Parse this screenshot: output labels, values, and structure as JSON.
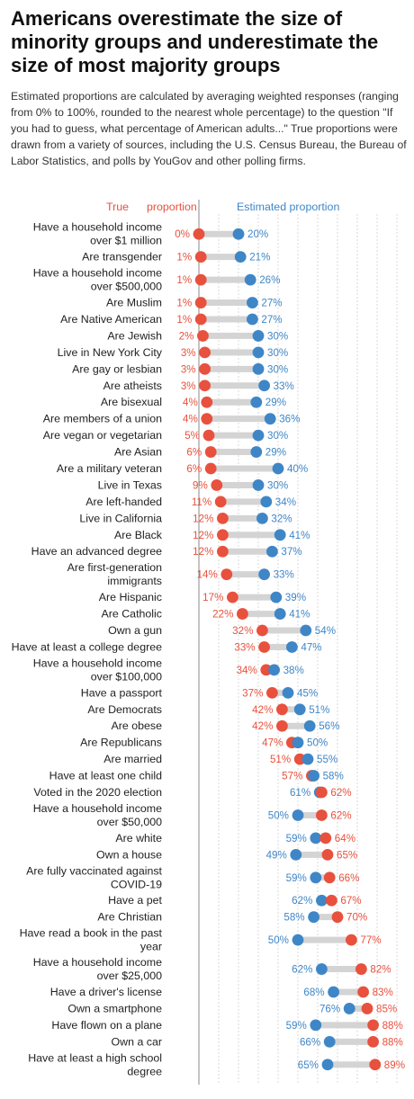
{
  "title": "Americans overestimate the size of minority groups and underestimate the size of most majority groups",
  "subtitle": "Estimated proportions are calculated by averaging weighted responses (ranging from 0% to 100%, rounded to the nearest whole percentage) to the question \"If you had to guess, what percentage of American adults...\" True proportions were drawn from a variety of sources, including the U.S. Census Bureau, the Bureau of Labor Statistics, and polls by YouGov and other polling firms.",
  "colors": {
    "true": "#e8513d",
    "estimated": "#3f86c7",
    "connector": "#d4d4d4",
    "grid": "#d9d9d9"
  },
  "chart_data": {
    "type": "dumbbell",
    "legend": {
      "true_label": "True",
      "true_label2": "proportion",
      "estimated_label": "Estimated proportion"
    },
    "xlim": [
      0,
      100
    ],
    "unit": "%",
    "categories": [
      [
        "Have a household income",
        "over $1 million"
      ],
      [
        "Are transgender"
      ],
      [
        "Have a household income",
        "over $500,000"
      ],
      [
        "Are Muslim"
      ],
      [
        "Are Native American"
      ],
      [
        "Are Jewish"
      ],
      [
        "Live in New York City"
      ],
      [
        "Are gay or lesbian"
      ],
      [
        "Are atheists"
      ],
      [
        "Are bisexual"
      ],
      [
        "Are members of a union"
      ],
      [
        "Are vegan or vegetarian"
      ],
      [
        "Are Asian"
      ],
      [
        "Are a military veteran"
      ],
      [
        "Live in Texas"
      ],
      [
        "Are left-handed"
      ],
      [
        "Live in California"
      ],
      [
        "Are Black"
      ],
      [
        "Have an advanced degree"
      ],
      [
        "Are first-generation",
        "immigrants"
      ],
      [
        "Are Hispanic"
      ],
      [
        "Are Catholic"
      ],
      [
        "Own a gun"
      ],
      [
        "Have at least a college degree"
      ],
      [
        "Have a household income",
        "over $100,000"
      ],
      [
        "Have a passport"
      ],
      [
        "Are Democrats"
      ],
      [
        "Are obese"
      ],
      [
        "Are Republicans"
      ],
      [
        "Are married"
      ],
      [
        "Have at least one child"
      ],
      [
        "Voted in the 2020 election"
      ],
      [
        "Have a household income",
        "over $50,000"
      ],
      [
        "Are white"
      ],
      [
        "Own a house"
      ],
      [
        "Are fully vaccinated against",
        "COVID-19"
      ],
      [
        "Have a pet"
      ],
      [
        "Are Christian"
      ],
      [
        "Have read a book in the past",
        "year"
      ],
      [
        "Have a household income",
        "over $25,000"
      ],
      [
        "Have a driver's license"
      ],
      [
        "Own a smartphone"
      ],
      [
        "Have flown on a plane"
      ],
      [
        "Own a car"
      ],
      [
        "Have at least a high school",
        "degree"
      ]
    ],
    "series": [
      {
        "name": "True proportion",
        "values": [
          0,
          1,
          1,
          1,
          1,
          2,
          3,
          3,
          3,
          4,
          4,
          5,
          6,
          6,
          9,
          11,
          12,
          12,
          12,
          14,
          17,
          22,
          32,
          33,
          34,
          37,
          42,
          42,
          47,
          51,
          57,
          62,
          62,
          64,
          65,
          66,
          67,
          70,
          77,
          82,
          83,
          85,
          88,
          88,
          89
        ]
      },
      {
        "name": "Estimated proportion",
        "values": [
          20,
          21,
          26,
          27,
          27,
          30,
          30,
          30,
          33,
          29,
          36,
          30,
          29,
          40,
          30,
          34,
          32,
          41,
          37,
          33,
          39,
          41,
          54,
          47,
          38,
          45,
          51,
          56,
          50,
          55,
          58,
          61,
          50,
          59,
          49,
          59,
          62,
          58,
          50,
          62,
          68,
          76,
          59,
          66,
          65
        ]
      }
    ]
  }
}
